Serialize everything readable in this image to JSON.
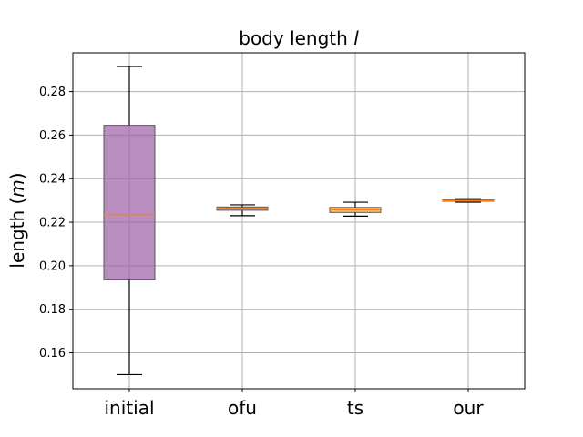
{
  "chart_data": {
    "type": "box",
    "title": "body length ",
    "title_italic": "l",
    "ylabel": "length (",
    "ylabel_italic": "m",
    "ylabel_close": ")",
    "xlabel": "",
    "categories": [
      "initial",
      "ofu",
      "ts",
      "our"
    ],
    "yticks": [
      "0.16",
      "0.18",
      "0.20",
      "0.22",
      "0.24",
      "0.26",
      "0.28"
    ],
    "ylim": [
      0.1435,
      0.2978
    ],
    "grid": true,
    "boxes": [
      {
        "category": "initial",
        "whislo": 0.15,
        "q1": 0.1935,
        "median": 0.2235,
        "q3": 0.2645,
        "whishi": 0.2915,
        "fill": "#9b5fa8"
      },
      {
        "category": "ofu",
        "whislo": 0.223,
        "q1": 0.2255,
        "median": 0.2262,
        "q3": 0.227,
        "whishi": 0.228,
        "fill": "#d9824b"
      },
      {
        "category": "ts",
        "whislo": 0.2228,
        "q1": 0.2245,
        "median": 0.2257,
        "q3": 0.2268,
        "whishi": 0.2292,
        "fill": "#f0b060"
      },
      {
        "category": "our",
        "whislo": 0.2292,
        "q1": 0.2296,
        "median": 0.2298,
        "q3": 0.2302,
        "whishi": 0.2304,
        "fill": "#f0c36a"
      }
    ],
    "median_color": "#ff7f0e",
    "grid_color": "#b0b0b0"
  }
}
